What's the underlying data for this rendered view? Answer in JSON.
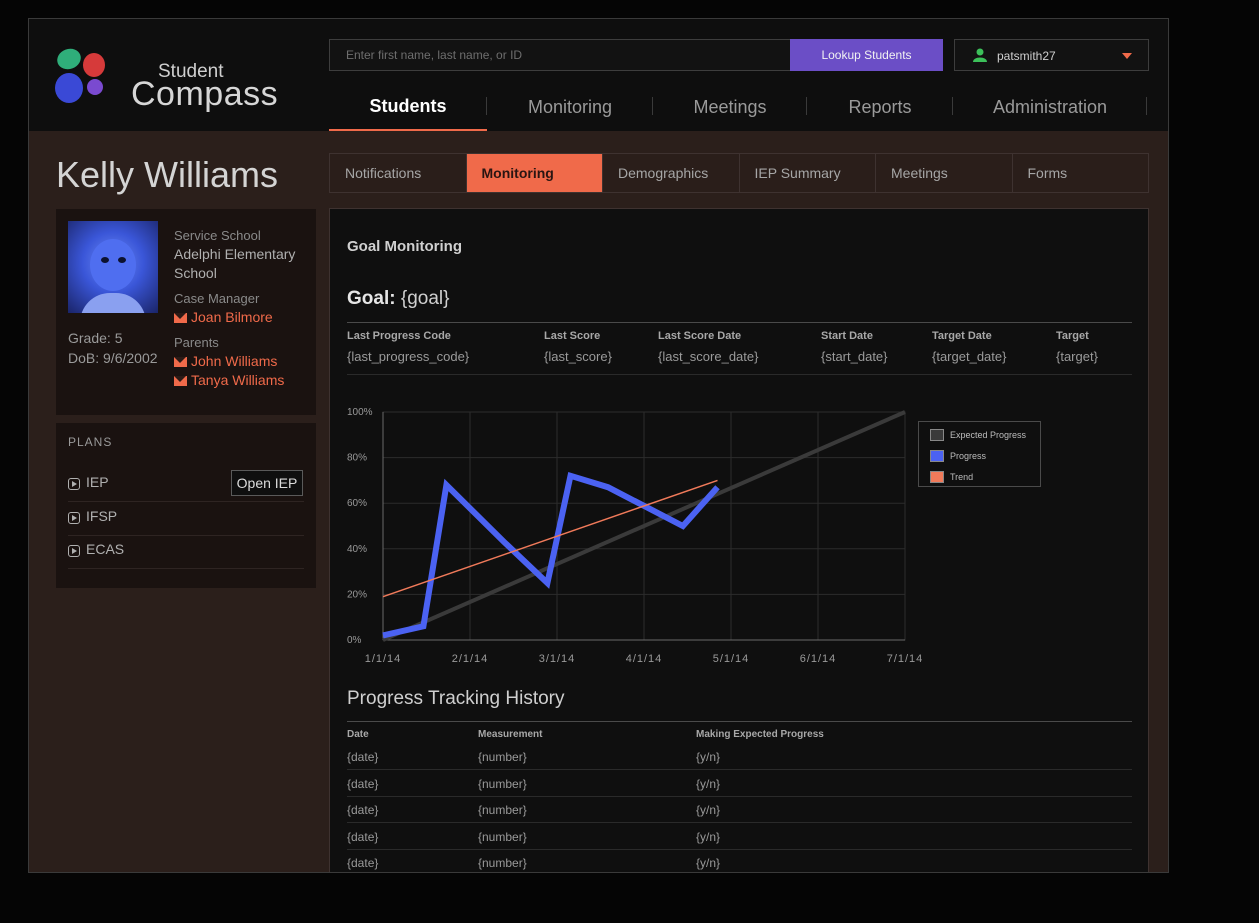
{
  "app": {
    "logo_small": "Student",
    "logo_big": "Compass"
  },
  "search": {
    "placeholder": "Enter first name, last name, or ID",
    "button_label": "Lookup Students"
  },
  "user": {
    "name": "patsmith27"
  },
  "main_nav": [
    "Students",
    "Monitoring",
    "Meetings",
    "Reports",
    "Administration"
  ],
  "main_nav_active": "Students",
  "student": {
    "name": "Kelly Williams",
    "service_school_label": "Service School",
    "service_school_value": [
      "Adelphi Elementary",
      "School"
    ],
    "case_manager_label": "Case Manager",
    "case_manager": "Joan Bilmore",
    "parents_label": "Parents",
    "parents": [
      "John Williams",
      "Tanya Williams"
    ],
    "grade": "Grade: 5",
    "dob": "DoB: 9/6/2002"
  },
  "plans": {
    "title": "PLANS",
    "items": [
      "IEP",
      "IFSP",
      "ECAS"
    ],
    "open_iep_label": "Open IEP"
  },
  "sub_tabs": [
    "Notifications",
    "Monitoring",
    "Demographics",
    "IEP Summary",
    "Meetings",
    "Forms"
  ],
  "sub_tabs_active": "Monitoring",
  "goal_monitoring": {
    "section_title": "Goal Monitoring",
    "goal_label": "Goal:",
    "goal_value": "{goal}",
    "columns": [
      {
        "head": "Last Progress Code",
        "value": "{last_progress_code}"
      },
      {
        "head": "Last Score",
        "value": "{last_score}"
      },
      {
        "head": "Last Score Date",
        "value": "{last_score_date}"
      },
      {
        "head": "Start Date",
        "value": "{start_date}"
      },
      {
        "head": "Target Date",
        "value": "{target_date}"
      },
      {
        "head": "Target",
        "value": "{target}"
      }
    ]
  },
  "chart_data": {
    "type": "line",
    "x_ticks": [
      "1/1/14",
      "2/1/14",
      "3/1/14",
      "4/1/14",
      "5/1/14",
      "6/1/14",
      "7/1/14"
    ],
    "y_ticks": [
      "0%",
      "20%",
      "40%",
      "60%",
      "80%",
      "100%"
    ],
    "ylim": [
      0,
      100
    ],
    "xlim": [
      "2014-01-01",
      "2014-07-01"
    ],
    "grid": true,
    "legend_position": "right",
    "series": [
      {
        "name": "Expected Progress",
        "color": "#3a3a3a",
        "points": [
          [
            "2014-01-01",
            0
          ],
          [
            "2014-07-01",
            100
          ]
        ]
      },
      {
        "name": "Progress",
        "color": "#4b62f2",
        "points": [
          [
            "2014-01-01",
            2
          ],
          [
            "2014-01-15",
            6
          ],
          [
            "2014-01-23",
            68
          ],
          [
            "2014-02-12",
            43
          ],
          [
            "2014-02-27",
            25
          ],
          [
            "2014-03-07",
            72
          ],
          [
            "2014-03-20",
            67
          ],
          [
            "2014-04-15",
            50
          ],
          [
            "2014-04-27",
            67
          ]
        ]
      },
      {
        "name": "Trend",
        "color": "#f07a5a",
        "points": [
          [
            "2014-01-01",
            19
          ],
          [
            "2014-04-27",
            70
          ]
        ]
      }
    ]
  },
  "history": {
    "title": "Progress Tracking History",
    "columns": [
      "Date",
      "Measurement",
      "Making Expected Progress"
    ],
    "rows": [
      [
        "{date}",
        "{number}",
        "{y/n}"
      ],
      [
        "{date}",
        "{number}",
        "{y/n}"
      ],
      [
        "{date}",
        "{number}",
        "{y/n}"
      ],
      [
        "{date}",
        "{number}",
        "{y/n}"
      ],
      [
        "{date}",
        "{number}",
        "{y/n}"
      ]
    ]
  },
  "colors": {
    "accent": "#f06a4a",
    "button": "#6b4ec6",
    "user_icon": "#3cc05a"
  }
}
